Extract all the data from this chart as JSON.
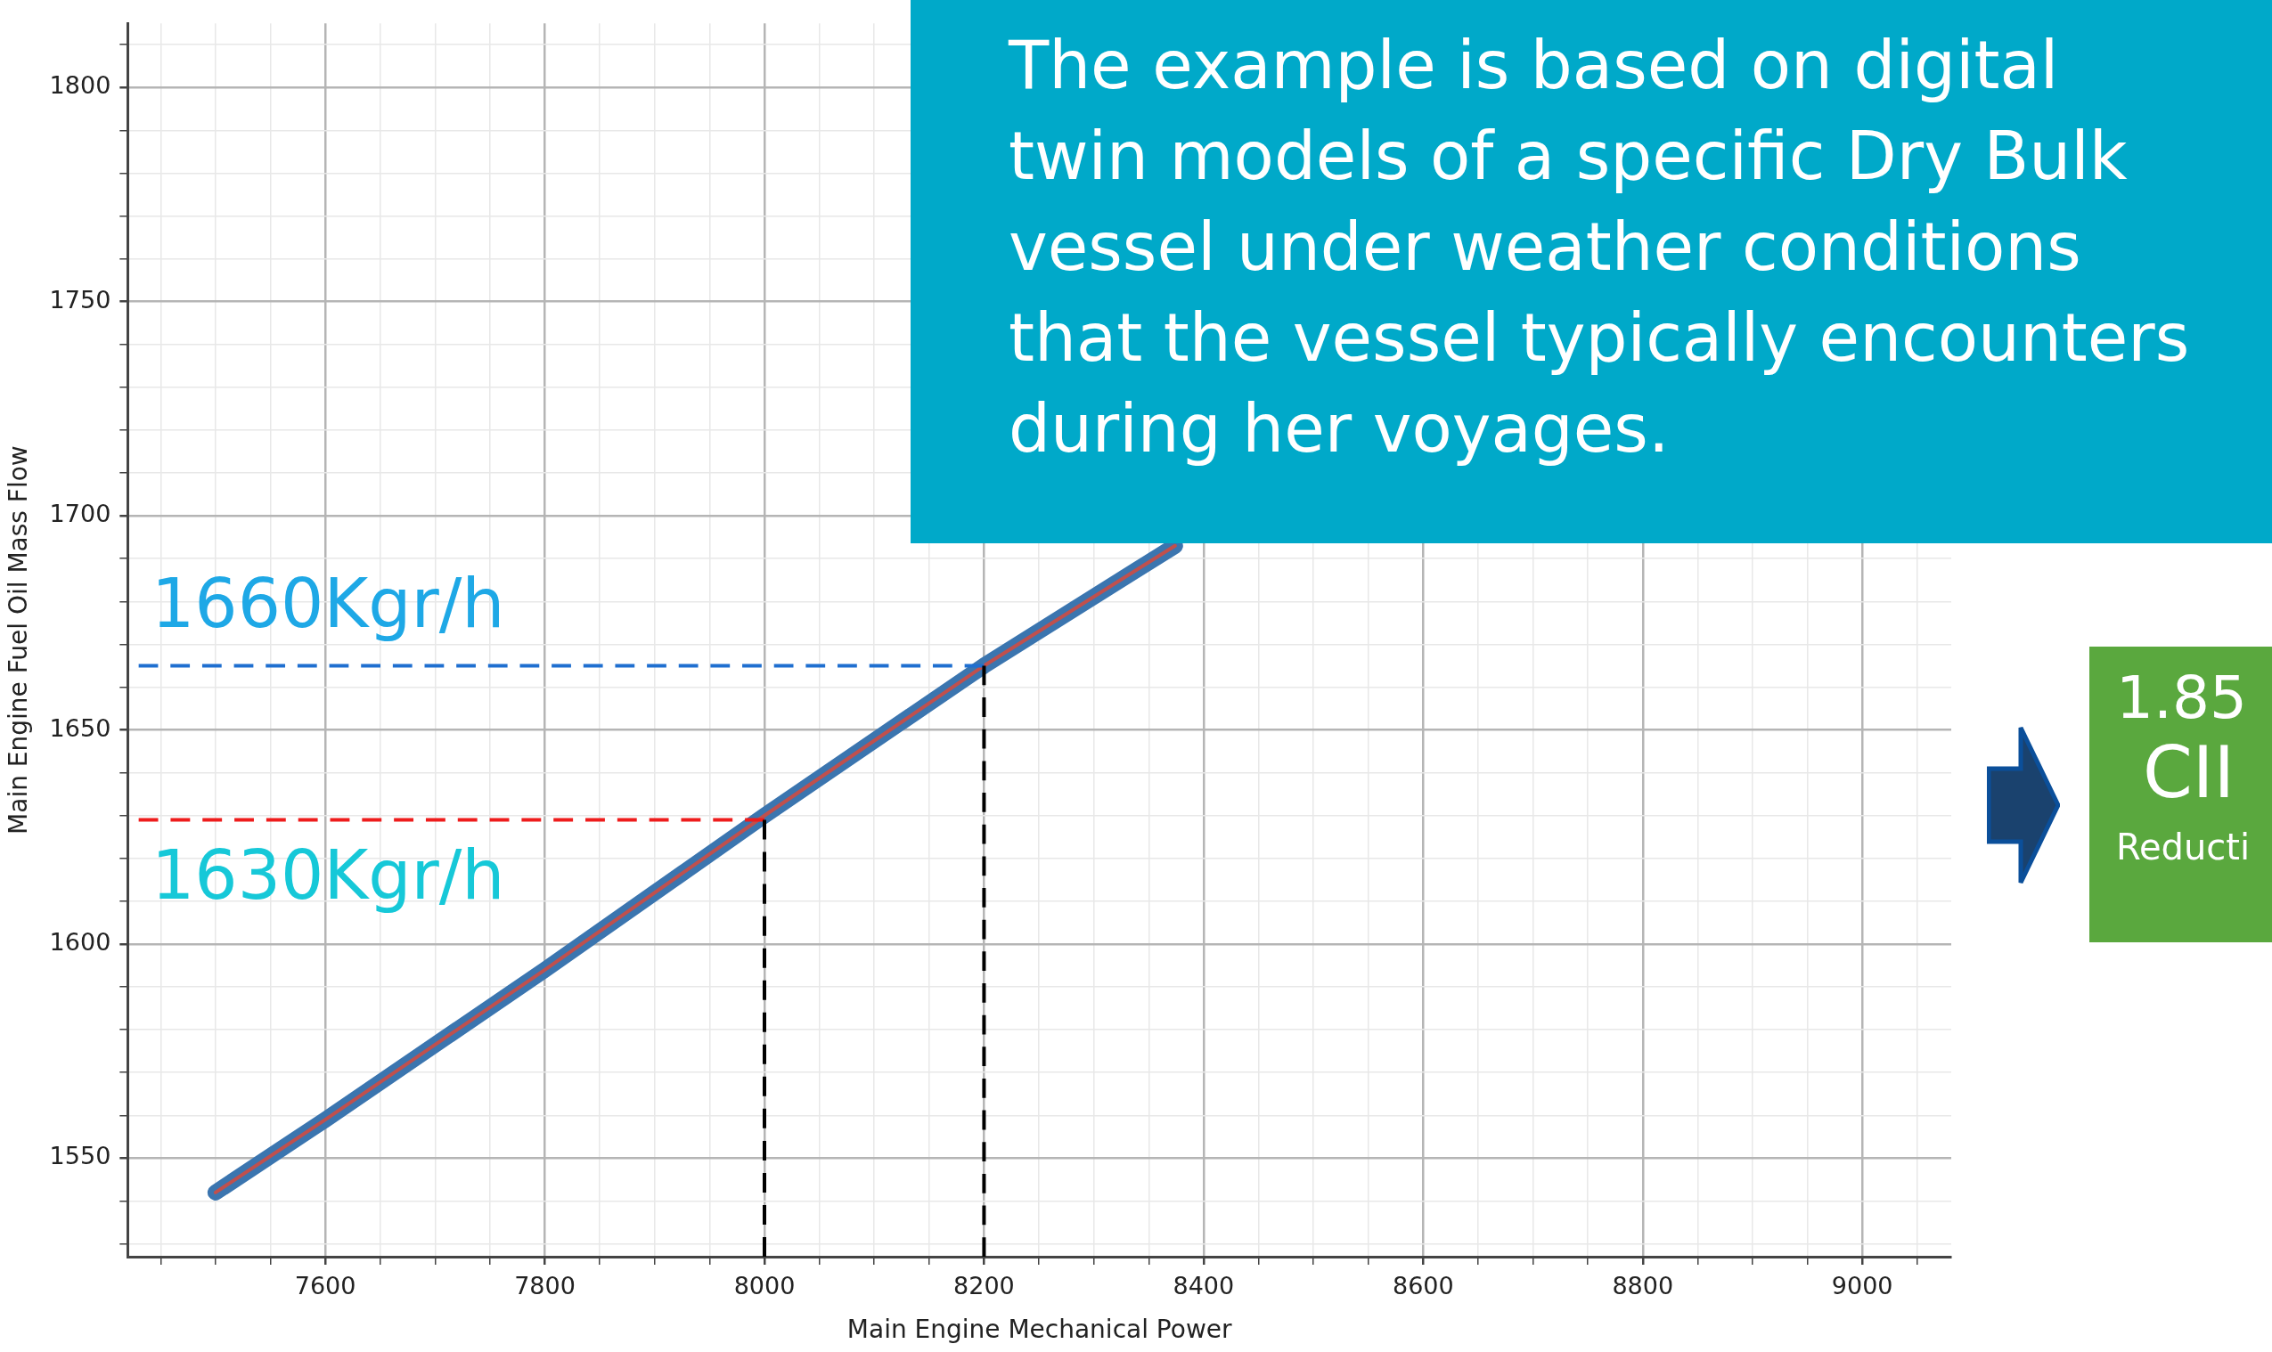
{
  "chart_data": {
    "type": "line",
    "xlabel": "Main Engine Mechanical Power",
    "ylabel": "Main Engine Fuel Oil Mass Flow",
    "series": [
      {
        "color": "#3b75af",
        "x": [
          7500,
          7600,
          7800,
          8000,
          8200,
          8374
        ],
        "values": [
          1542,
          1559,
          1594,
          1630,
          1665,
          1693
        ]
      },
      {
        "color": "#c0504d",
        "x": [
          7500,
          7600,
          7800,
          8000,
          8200,
          8374
        ],
        "values": [
          1542,
          1559,
          1594,
          1630,
          1665,
          1693
        ]
      },
      {
        "color": "#1f6fd0",
        "line_style": "dashed",
        "x": [
          7430,
          8200
        ],
        "values": [
          1665,
          1665
        ]
      },
      {
        "color": "#ee1c1c",
        "line_style": "dashed",
        "x": [
          7430,
          8000
        ],
        "values": [
          1629,
          1629
        ]
      },
      {
        "color": "#000000",
        "line_style": "dashed",
        "x": [
          8000,
          8000
        ],
        "values": [
          1527,
          1629
        ]
      },
      {
        "color": "#000000",
        "line_style": "dashed",
        "x": [
          8200,
          8200
        ],
        "values": [
          1527,
          1665
        ]
      }
    ],
    "xlim": [
      7420,
      9081
    ],
    "ylim": [
      1527,
      1815
    ],
    "xticks": [
      {
        "value": 7450,
        "label": null
      },
      {
        "value": 7500,
        "label": null
      },
      {
        "value": 7550,
        "label": null
      },
      7600,
      {
        "value": 7650,
        "label": null
      },
      {
        "value": 7700,
        "label": null
      },
      {
        "value": 7750,
        "label": null
      },
      7800,
      {
        "value": 7850,
        "label": null
      },
      {
        "value": 7900,
        "label": null
      },
      {
        "value": 7950,
        "label": null
      },
      8000,
      {
        "value": 8050,
        "label": null
      },
      {
        "value": 8100,
        "label": null
      },
      {
        "value": 8150,
        "label": null
      },
      8200,
      {
        "value": 8250,
        "label": null
      },
      {
        "value": 8300,
        "label": null
      },
      {
        "value": 8350,
        "label": null
      },
      8400,
      {
        "value": 8450,
        "label": null
      },
      {
        "value": 8500,
        "label": null
      },
      {
        "value": 8550,
        "label": null
      },
      8600,
      {
        "value": 8650,
        "label": null
      },
      {
        "value": 8700,
        "label": null
      },
      {
        "value": 8750,
        "label": null
      },
      8800,
      {
        "value": 8850,
        "label": null
      },
      {
        "value": 8900,
        "label": null
      },
      {
        "value": 8950,
        "label": null
      },
      9000,
      {
        "value": 9050,
        "label": null
      }
    ],
    "yticks": [
      {
        "value": 1530,
        "label": null
      },
      {
        "value": 1540,
        "label": null
      },
      1550,
      {
        "value": 1560,
        "label": null
      },
      {
        "value": 1570,
        "label": null
      },
      {
        "value": 1580,
        "label": null
      },
      {
        "value": 1590,
        "label": null
      },
      1600,
      {
        "value": 1610,
        "label": null
      },
      {
        "value": 1620,
        "label": null
      },
      {
        "value": 1630,
        "label": null
      },
      {
        "value": 1640,
        "label": null
      },
      1650,
      {
        "value": 1660,
        "label": null
      },
      {
        "value": 1670,
        "label": null
      },
      {
        "value": 1680,
        "label": null
      },
      {
        "value": 1690,
        "label": null
      },
      1700,
      {
        "value": 1710,
        "label": null
      },
      {
        "value": 1720,
        "label": null
      },
      {
        "value": 1730,
        "label": null
      },
      {
        "value": 1740,
        "label": null
      },
      1750,
      {
        "value": 1760,
        "label": null
      },
      {
        "value": 1770,
        "label": null
      },
      {
        "value": 1780,
        "label": null
      },
      {
        "value": 1790,
        "label": null
      },
      1800,
      {
        "value": 1810,
        "label": null
      }
    ],
    "grid": true,
    "legend": false,
    "marker": "none",
    "line_style": "solid",
    "annotations": [
      "The example is based on digital twin models of a specific Dry Bulk vessel under weather conditions that the vessel typically encounters during her voyages.",
      "1.85",
      "CII",
      "Reducti",
      "1660Kgr/h",
      "1630Kgr/h"
    ]
  }
}
